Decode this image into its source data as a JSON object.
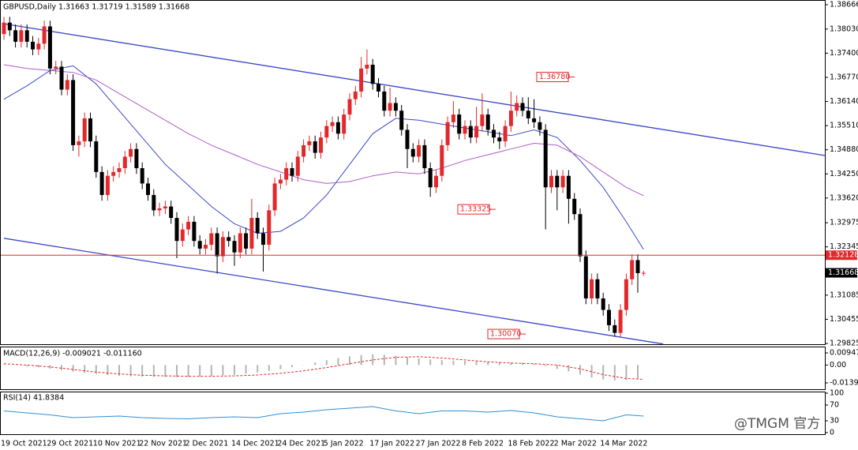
{
  "chart_data": [
    {
      "type": "candlestick",
      "title": "GBPUSD,Daily 1.31663 1.31719 1.31589 1.31668",
      "categories": [
        "19 Oct 2021",
        null,
        null,
        null,
        null,
        null,
        null,
        null,
        "29 Oct 2021",
        null,
        null,
        null,
        null,
        null,
        null,
        null,
        "10 Nov 2021",
        null,
        null,
        null,
        null,
        null,
        null,
        null,
        "22 Nov 2021",
        null,
        null,
        null,
        null,
        null,
        null,
        null,
        "2 Dec 2021",
        null,
        null,
        null,
        null,
        null,
        null,
        null,
        "14 Dec 2021",
        null,
        null,
        null,
        null,
        null,
        null,
        null,
        "24 Dec 2021",
        null,
        null,
        null,
        null,
        null,
        null,
        null,
        "5 Jan 2022",
        null,
        null,
        null,
        null,
        null,
        null,
        null,
        "17 Jan 2022",
        null,
        null,
        null,
        null,
        null,
        null,
        null,
        "27 Jan 2022",
        null,
        null,
        null,
        null,
        null,
        null,
        null,
        "8 Feb 2022",
        null,
        null,
        null,
        null,
        null,
        null,
        null,
        "18 Feb 2022",
        null,
        null,
        null,
        null,
        null,
        null,
        null,
        "2 Mar 2022",
        null,
        null,
        null,
        null,
        null,
        null,
        null,
        "14 Mar 2022",
        null,
        null,
        null,
        null,
        null,
        null,
        null
      ],
      "candles": [
        [
          1.379,
          1.3835,
          1.3775,
          1.382
        ],
        [
          1.382,
          1.3835,
          1.3785,
          1.38
        ],
        [
          1.38,
          1.3815,
          1.3755,
          1.377
        ],
        [
          1.377,
          1.3815,
          1.3755,
          1.38
        ],
        [
          1.38,
          1.3815,
          1.3755,
          1.377
        ],
        [
          1.377,
          1.3785,
          1.3735,
          1.375
        ],
        [
          1.375,
          1.378,
          1.3735,
          1.3765
        ],
        [
          1.3765,
          1.3825,
          1.375,
          1.381
        ],
        [
          1.381,
          1.3825,
          1.3685,
          1.37
        ],
        [
          1.37,
          1.372,
          1.3685,
          1.3705
        ],
        [
          1.3705,
          1.372,
          1.363,
          1.3645
        ],
        [
          1.3645,
          1.3685,
          1.363,
          1.367
        ],
        [
          1.367,
          1.3685,
          1.3485,
          1.35
        ],
        [
          1.35,
          1.3525,
          1.347,
          1.351
        ],
        [
          1.351,
          1.3585,
          1.3495,
          1.357
        ],
        [
          1.357,
          1.3585,
          1.3495,
          1.351
        ],
        [
          1.351,
          1.3525,
          1.3415,
          1.343
        ],
        [
          1.343,
          1.3445,
          1.3355,
          1.337
        ],
        [
          1.337,
          1.3435,
          1.3355,
          1.342
        ],
        [
          1.342,
          1.3445,
          1.3405,
          1.343
        ],
        [
          1.343,
          1.3455,
          1.3415,
          1.344
        ],
        [
          1.344,
          1.3485,
          1.3425,
          1.347
        ],
        [
          1.347,
          1.3505,
          1.3455,
          1.349
        ],
        [
          1.349,
          1.3505,
          1.3425,
          1.344
        ],
        [
          1.344,
          1.3455,
          1.3385,
          1.34
        ],
        [
          1.34,
          1.3415,
          1.3355,
          1.337
        ],
        [
          1.337,
          1.3385,
          1.3315,
          1.333
        ],
        [
          1.333,
          1.335,
          1.3315,
          1.3335
        ],
        [
          1.3335,
          1.3355,
          1.332,
          1.334
        ],
        [
          1.334,
          1.3355,
          1.3295,
          1.331
        ],
        [
          1.331,
          1.3325,
          1.3205,
          1.325
        ],
        [
          1.325,
          1.3295,
          1.3235,
          1.328
        ],
        [
          1.328,
          1.3315,
          1.3265,
          1.33
        ],
        [
          1.33,
          1.3315,
          1.3235,
          1.325
        ],
        [
          1.325,
          1.3265,
          1.3215,
          1.323
        ],
        [
          1.323,
          1.3255,
          1.3215,
          1.324
        ],
        [
          1.324,
          1.3285,
          1.3225,
          1.327
        ],
        [
          1.327,
          1.3285,
          1.3165,
          1.321
        ],
        [
          1.321,
          1.3275,
          1.3195,
          1.326
        ],
        [
          1.326,
          1.3275,
          1.3235,
          1.325
        ],
        [
          1.325,
          1.3265,
          1.3185,
          1.322
        ],
        [
          1.322,
          1.3285,
          1.3205,
          1.327
        ],
        [
          1.327,
          1.3285,
          1.3215,
          1.323
        ],
        [
          1.323,
          1.336,
          1.3215,
          1.331
        ],
        [
          1.331,
          1.3325,
          1.3255,
          1.327
        ],
        [
          1.327,
          1.3285,
          1.317,
          1.324
        ],
        [
          1.324,
          1.3345,
          1.3225,
          1.333
        ],
        [
          1.333,
          1.3415,
          1.3315,
          1.34
        ],
        [
          1.34,
          1.3425,
          1.3385,
          1.341
        ],
        [
          1.341,
          1.3455,
          1.3395,
          1.344
        ],
        [
          1.344,
          1.3455,
          1.3405,
          1.342
        ],
        [
          1.342,
          1.3485,
          1.3405,
          1.347
        ],
        [
          1.347,
          1.3515,
          1.3455,
          1.35
        ],
        [
          1.35,
          1.3525,
          1.3485,
          1.351
        ],
        [
          1.351,
          1.3525,
          1.3465,
          1.348
        ],
        [
          1.348,
          1.3535,
          1.3465,
          1.352
        ],
        [
          1.352,
          1.3565,
          1.3505,
          1.355
        ],
        [
          1.355,
          1.3575,
          1.3535,
          1.356
        ],
        [
          1.356,
          1.3575,
          1.3515,
          1.353
        ],
        [
          1.353,
          1.3595,
          1.3515,
          1.358
        ],
        [
          1.358,
          1.3635,
          1.3565,
          1.362
        ],
        [
          1.362,
          1.3655,
          1.3605,
          1.364
        ],
        [
          1.364,
          1.373,
          1.3625,
          1.37
        ],
        [
          1.37,
          1.375,
          1.3685,
          1.371
        ],
        [
          1.371,
          1.3725,
          1.3645,
          1.366
        ],
        [
          1.366,
          1.3675,
          1.3625,
          1.364
        ],
        [
          1.364,
          1.3655,
          1.3575,
          1.359
        ],
        [
          1.359,
          1.365,
          1.3575,
          1.361
        ],
        [
          1.361,
          1.3625,
          1.3575,
          1.359
        ],
        [
          1.359,
          1.3605,
          1.3525,
          1.354
        ],
        [
          1.354,
          1.3555,
          1.344,
          1.349
        ],
        [
          1.349,
          1.3505,
          1.3455,
          1.347
        ],
        [
          1.347,
          1.3515,
          1.3455,
          1.35
        ],
        [
          1.35,
          1.3515,
          1.3425,
          1.344
        ],
        [
          1.344,
          1.3455,
          1.3365,
          1.339
        ],
        [
          1.339,
          1.3435,
          1.3375,
          1.342
        ],
        [
          1.342,
          1.3515,
          1.3405,
          1.35
        ],
        [
          1.35,
          1.3575,
          1.3485,
          1.356
        ],
        [
          1.356,
          1.3615,
          1.3545,
          1.358
        ],
        [
          1.358,
          1.3595,
          1.3515,
          1.353
        ],
        [
          1.353,
          1.3565,
          1.3515,
          1.355
        ],
        [
          1.355,
          1.3565,
          1.3505,
          1.352
        ],
        [
          1.352,
          1.36,
          1.3505,
          1.355
        ],
        [
          1.355,
          1.3635,
          1.3535,
          1.358
        ],
        [
          1.358,
          1.3595,
          1.3525,
          1.354
        ],
        [
          1.354,
          1.3555,
          1.3505,
          1.352
        ],
        [
          1.352,
          1.3535,
          1.349,
          1.351
        ],
        [
          1.351,
          1.3565,
          1.3495,
          1.355
        ],
        [
          1.355,
          1.364,
          1.3535,
          1.359
        ],
        [
          1.359,
          1.363,
          1.3575,
          1.361
        ],
        [
          1.361,
          1.3625,
          1.3575,
          1.359
        ],
        [
          1.359,
          1.3625,
          1.3555,
          1.357
        ],
        [
          1.357,
          1.362,
          1.3545,
          1.356
        ],
        [
          1.356,
          1.3575,
          1.3525,
          1.354
        ],
        [
          1.354,
          1.3555,
          1.328,
          1.339
        ],
        [
          1.339,
          1.3435,
          1.3375,
          1.342
        ],
        [
          1.342,
          1.3435,
          1.333,
          1.339
        ],
        [
          1.339,
          1.3435,
          1.3375,
          1.342
        ],
        [
          1.342,
          1.3435,
          1.3295,
          1.336
        ],
        [
          1.336,
          1.3375,
          1.3305,
          1.332
        ],
        [
          1.332,
          1.3335,
          1.3195,
          1.321
        ],
        [
          1.321,
          1.3225,
          1.3085,
          1.31
        ],
        [
          1.31,
          1.3165,
          1.3085,
          1.315
        ],
        [
          1.315,
          1.3165,
          1.3085,
          1.31
        ],
        [
          1.31,
          1.3115,
          1.3055,
          1.307
        ],
        [
          1.307,
          1.3085,
          1.3015,
          1.303
        ],
        [
          1.303,
          1.3045,
          1.3,
          1.301
        ],
        [
          1.301,
          1.3085,
          1.3,
          1.307
        ],
        [
          1.307,
          1.3165,
          1.3055,
          1.315
        ],
        [
          1.315,
          1.3215,
          1.3135,
          1.32
        ],
        [
          1.32,
          1.3215,
          1.3115,
          1.3166
        ],
        [
          1.31663,
          1.31719,
          1.31589,
          1.31668
        ]
      ],
      "up_color": "#e3282c",
      "down_color": "#000000",
      "ylim": [
        1.29825,
        1.38666
      ],
      "yticks": [
        1.38666,
        {
          "value": 1.3803,
          "label": "1.38030"
        },
        {
          "value": 1.374,
          "label": "1.37400"
        },
        {
          "value": 1.3677,
          "label": "1.36770"
        },
        {
          "value": 1.3614,
          "label": "1.36140"
        },
        {
          "value": 1.3551,
          "label": "1.35510"
        },
        {
          "value": 1.3488,
          "label": "1.34880"
        },
        {
          "value": 1.3425,
          "label": "1.34250"
        },
        {
          "value": 1.3362,
          "label": "1.33620"
        },
        1.32975,
        1.32345,
        1.31085,
        1.30455,
        1.29825
      ],
      "moving_averages": [
        {
          "color": "#3b47c9",
          "x": [
            0,
            4,
            8,
            12,
            16,
            20,
            24,
            28,
            32,
            36,
            40,
            44,
            48,
            52,
            56,
            60,
            64,
            68,
            72,
            76,
            80,
            84,
            88,
            92,
            96,
            100,
            104,
            108,
            111
          ],
          "values": [
            1.362,
            1.3655,
            1.3695,
            1.3707,
            1.366,
            1.359,
            1.352,
            1.345,
            1.3395,
            1.334,
            1.3295,
            1.327,
            1.3275,
            1.331,
            1.337,
            1.345,
            1.353,
            1.357,
            1.3565,
            1.3555,
            1.3545,
            1.3535,
            1.3525,
            1.354,
            1.352,
            1.346,
            1.339,
            1.33,
            1.3228
          ]
        },
        {
          "color": "#b05cc9",
          "x": [
            0,
            4,
            8,
            12,
            16,
            20,
            24,
            28,
            32,
            36,
            40,
            44,
            48,
            52,
            56,
            60,
            64,
            68,
            72,
            76,
            80,
            84,
            88,
            92,
            96,
            100,
            104,
            108,
            111
          ],
          "values": [
            1.371,
            1.37,
            1.3695,
            1.369,
            1.367,
            1.3635,
            1.36,
            1.3565,
            1.353,
            1.35,
            1.3475,
            1.345,
            1.343,
            1.341,
            1.34,
            1.3405,
            1.342,
            1.343,
            1.3425,
            1.344,
            1.346,
            1.3475,
            1.349,
            1.3505,
            1.35,
            1.347,
            1.343,
            1.339,
            1.3368
          ]
        }
      ],
      "channel": [
        {
          "color": "#3b47c9",
          "x": [
            0,
            142.5
          ],
          "values": [
            1.3817,
            1.3473
          ]
        },
        {
          "color": "#3b47c9",
          "x": [
            0,
            114.4
          ],
          "values": [
            1.3257,
            1.2981
          ]
        }
      ],
      "hline": {
        "value": 1.32128,
        "label": "1.32128",
        "color": "#e3282c"
      },
      "last_price": {
        "value": 1.31668,
        "label": "1.31668"
      },
      "price_labels": [
        {
          "value": 1.3678,
          "label": "1.36780"
        },
        {
          "value": 1.33325,
          "label": "1.33325"
        },
        {
          "value": 1.3007,
          "label": "1.30070"
        }
      ]
    },
    {
      "type": "macd",
      "title": "MACD(12,26,9) -0.009021 -0.011160",
      "color": "#b4b4b4",
      "x": [
        0,
        2,
        4,
        6,
        8,
        10,
        12,
        14,
        16,
        18,
        20,
        22,
        24,
        26,
        28,
        30,
        32,
        34,
        36,
        38,
        40,
        42,
        44,
        46,
        48,
        50,
        52,
        54,
        56,
        58,
        60,
        62,
        64,
        66,
        68,
        70,
        72,
        74,
        76,
        78,
        80,
        82,
        84,
        86,
        88,
        90,
        92,
        94,
        96,
        98,
        100,
        102,
        104,
        106,
        108,
        110
      ],
      "values": [
        0.0005,
        -0.0002,
        -0.001,
        -0.0018,
        -0.0028,
        -0.004,
        -0.0052,
        -0.0062,
        -0.007,
        -0.0078,
        -0.0084,
        -0.0088,
        -0.009,
        -0.0092,
        -0.0093,
        -0.0094,
        -0.0093,
        -0.009,
        -0.0087,
        -0.0082,
        -0.0076,
        -0.0068,
        -0.0058,
        -0.0046,
        -0.0032,
        -0.0016,
        0.0002,
        0.002,
        0.0038,
        0.0055,
        0.0068,
        0.0078,
        0.0083,
        0.008,
        0.0072,
        0.0062,
        0.0052,
        0.0044,
        0.0038,
        0.0035,
        0.0032,
        0.0028,
        0.0025,
        0.0022,
        0.002,
        0.0018,
        0.001,
        -0.001,
        -0.003,
        -0.005,
        -0.0075,
        -0.0098,
        -0.0112,
        -0.012,
        -0.0118,
        -0.011
      ],
      "signal": {
        "color": "#e3282c",
        "x": [
          0,
          4,
          8,
          12,
          16,
          20,
          24,
          28,
          32,
          36,
          40,
          44,
          48,
          52,
          56,
          60,
          64,
          68,
          72,
          76,
          80,
          84,
          88,
          92,
          96,
          100,
          104,
          108,
          111
        ],
        "values": [
          0.001,
          0.0,
          -0.0015,
          -0.0035,
          -0.0055,
          -0.007,
          -0.008,
          -0.0085,
          -0.0088,
          -0.0088,
          -0.0085,
          -0.0078,
          -0.0065,
          -0.0045,
          -0.002,
          0.001,
          0.004,
          0.006,
          0.0065,
          0.0055,
          0.004,
          0.0025,
          0.0015,
          0.001,
          0.0,
          -0.003,
          -0.0075,
          -0.0105,
          -0.0112
        ]
      },
      "ylim": [
        -0.0189,
        0.0138
      ],
      "yticks": [
        0.009472,
        {
          "value": 0,
          "label": "0.00"
        },
        -0.01397
      ]
    },
    {
      "type": "line",
      "title": "RSI(14) 41.8384",
      "color": "#2f8fd8",
      "x": [
        0,
        4,
        8,
        12,
        16,
        20,
        24,
        28,
        32,
        36,
        40,
        44,
        48,
        52,
        56,
        60,
        64,
        68,
        72,
        76,
        80,
        84,
        88,
        92,
        96,
        100,
        104,
        108,
        111
      ],
      "values": [
        55,
        50,
        45,
        38,
        40,
        42,
        38,
        36,
        35,
        38,
        40,
        38,
        48,
        52,
        58,
        62,
        66,
        55,
        48,
        55,
        55,
        52,
        56,
        50,
        40,
        35,
        30,
        45,
        42
      ],
      "ylim": [
        0,
        100
      ],
      "yticks": [
        100,
        70,
        30,
        0
      ]
    }
  ],
  "watermark": "@TMGM 官方"
}
